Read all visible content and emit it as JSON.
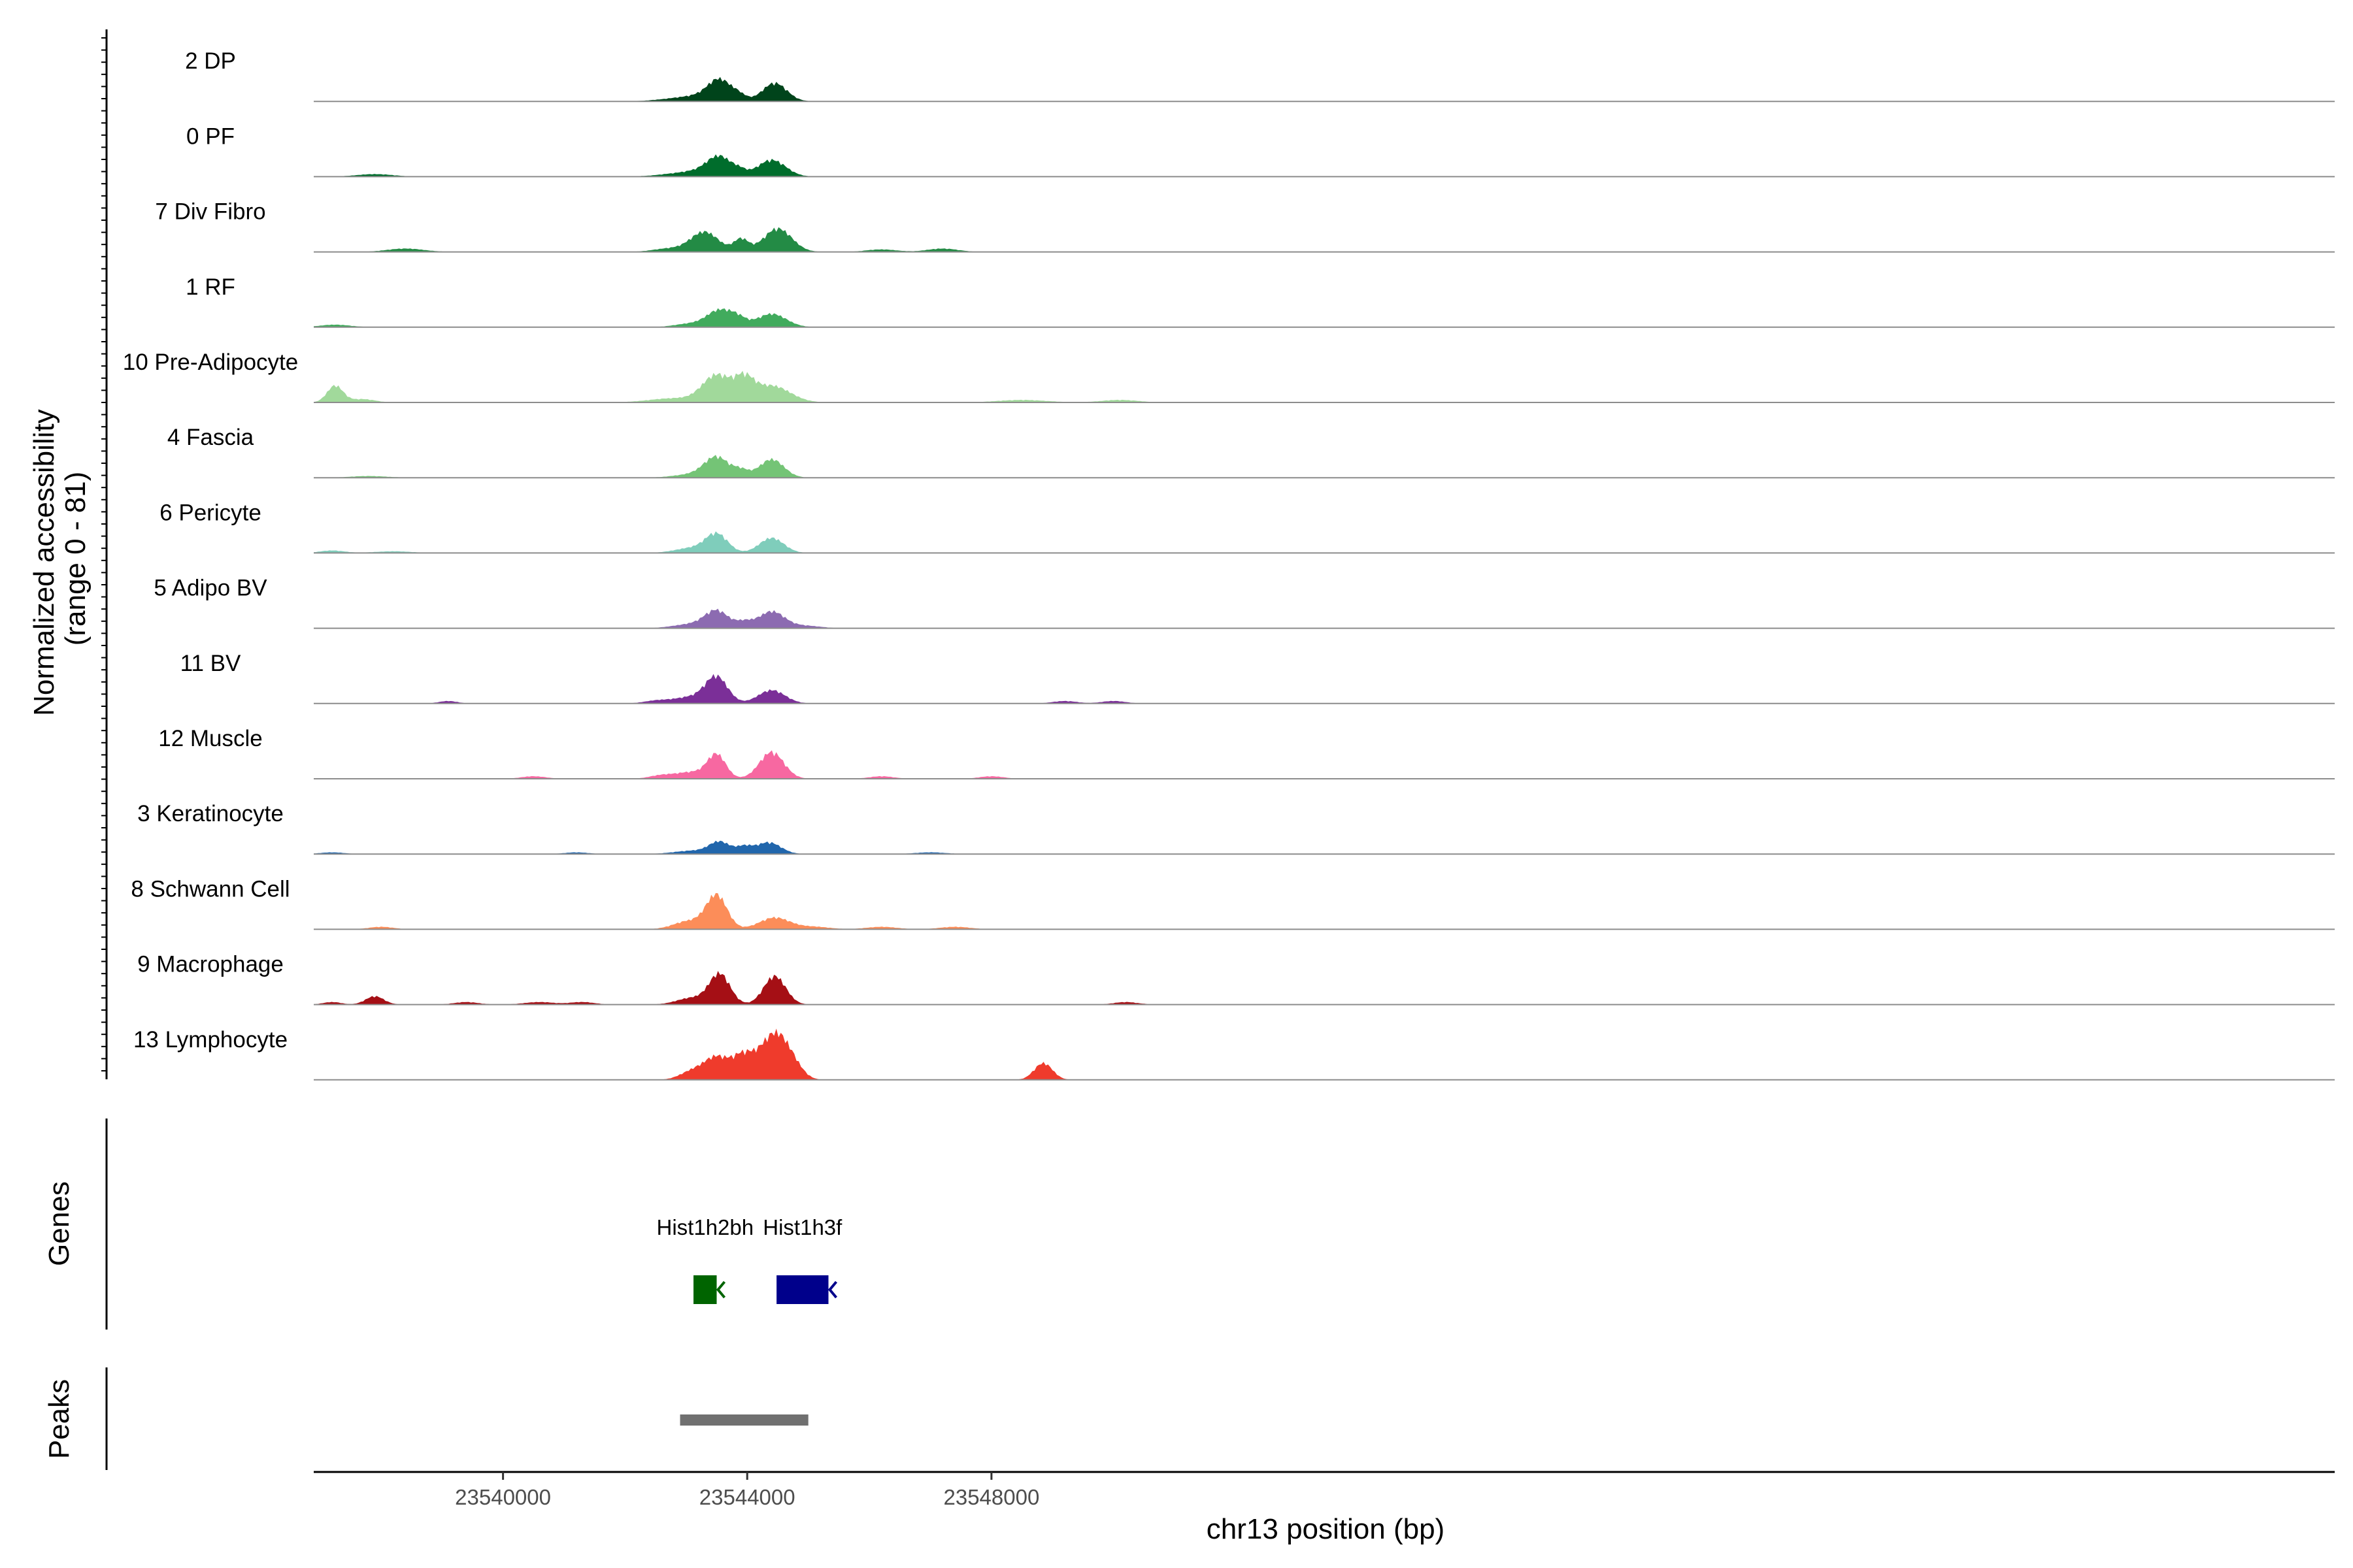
{
  "chart_data": {
    "type": "area",
    "title": "",
    "chromosome": "chr13",
    "xlim": [
      23536900,
      23570000
    ],
    "xlabel": "chr13 position (bp)",
    "x_ticks": [
      23540000,
      23544000,
      23548000
    ],
    "x_tick_labels": [
      "23540000",
      "23544000",
      "23548000"
    ],
    "ylabel_line1": "Normalized accessibility",
    "ylabel_line2": "(range 0 - 81)",
    "ylim": [
      0,
      81
    ],
    "genes_label": "Genes",
    "peaks_label": "Peaks",
    "series": [
      {
        "name": "2 DP",
        "color": "#00441b",
        "peaks": [
          [
            23543550,
            190,
            24
          ],
          [
            23543870,
            120,
            6
          ],
          [
            23544450,
            200,
            22
          ],
          [
            23543200,
            300,
            6
          ],
          [
            23542700,
            300,
            2
          ]
        ]
      },
      {
        "name": "0 PF",
        "color": "#006d2c",
        "peaks": [
          [
            23543550,
            200,
            22
          ],
          [
            23543200,
            300,
            6
          ],
          [
            23543880,
            110,
            5
          ],
          [
            23544400,
            230,
            20
          ],
          [
            23537900,
            300,
            3
          ],
          [
            23542700,
            300,
            2
          ]
        ]
      },
      {
        "name": "7 Div Fibro",
        "color": "#238b45",
        "peaks": [
          [
            23543300,
            230,
            24
          ],
          [
            23543900,
            120,
            15
          ],
          [
            23544500,
            230,
            28
          ],
          [
            23542700,
            250,
            4
          ],
          [
            23538400,
            300,
            4
          ],
          [
            23546200,
            250,
            3
          ],
          [
            23547200,
            250,
            4
          ]
        ]
      },
      {
        "name": "1 RF",
        "color": "#41ab5d",
        "peaks": [
          [
            23543550,
            210,
            20
          ],
          [
            23543850,
            140,
            8
          ],
          [
            23544400,
            240,
            16
          ],
          [
            23537250,
            250,
            3
          ],
          [
            23543050,
            250,
            4
          ]
        ]
      },
      {
        "name": "10 Pre-Adipocyte",
        "color": "#a1d99b",
        "peaks": [
          [
            23537250,
            130,
            20
          ],
          [
            23537700,
            200,
            4
          ],
          [
            23543500,
            230,
            32
          ],
          [
            23543950,
            160,
            24
          ],
          [
            23544400,
            300,
            20
          ],
          [
            23542800,
            400,
            5
          ],
          [
            23548500,
            400,
            3
          ],
          [
            23550100,
            300,
            3
          ]
        ]
      },
      {
        "name": "4 Fascia",
        "color": "#74c476",
        "peaks": [
          [
            23543500,
            200,
            24
          ],
          [
            23543900,
            130,
            8
          ],
          [
            23544400,
            200,
            22
          ],
          [
            23543100,
            300,
            4
          ],
          [
            23537800,
            300,
            2
          ]
        ]
      },
      {
        "name": "6 Pericyte",
        "color": "#7fcdbb",
        "peaks": [
          [
            23543500,
            180,
            22
          ],
          [
            23543100,
            280,
            6
          ],
          [
            23544400,
            200,
            18
          ],
          [
            23537200,
            200,
            3
          ],
          [
            23538200,
            300,
            2
          ]
        ]
      },
      {
        "name": "5 Adipo BV",
        "color": "#8c6bb1",
        "peaks": [
          [
            23543500,
            190,
            20
          ],
          [
            23543950,
            140,
            7
          ],
          [
            23544400,
            210,
            20
          ],
          [
            23543100,
            300,
            5
          ],
          [
            23544950,
            250,
            3
          ]
        ]
      },
      {
        "name": "11 BV",
        "color": "#7b2f98",
        "peaks": [
          [
            23543500,
            180,
            30
          ],
          [
            23544400,
            220,
            16
          ],
          [
            23543100,
            300,
            8
          ],
          [
            23542500,
            200,
            3
          ],
          [
            23539100,
            150,
            3
          ],
          [
            23549200,
            200,
            3
          ],
          [
            23550000,
            200,
            3
          ]
        ]
      },
      {
        "name": "12 Muscle",
        "color": "#f768a1",
        "peaks": [
          [
            23543500,
            150,
            28
          ],
          [
            23544400,
            200,
            32
          ],
          [
            23543100,
            250,
            8
          ],
          [
            23542600,
            200,
            4
          ],
          [
            23540500,
            200,
            3
          ],
          [
            23546200,
            200,
            3
          ],
          [
            23548000,
            200,
            3
          ]
        ]
      },
      {
        "name": "3 Keratinocyte",
        "color": "#2166ac",
        "peaks": [
          [
            23543550,
            170,
            14
          ],
          [
            23543950,
            130,
            8
          ],
          [
            23544350,
            200,
            14
          ],
          [
            23543100,
            300,
            4
          ],
          [
            23537200,
            200,
            2
          ],
          [
            23541200,
            200,
            2
          ],
          [
            23547000,
            250,
            2
          ]
        ]
      },
      {
        "name": "8 Schwann Cell",
        "color": "#fc8d59",
        "peaks": [
          [
            23543500,
            170,
            40
          ],
          [
            23543050,
            250,
            10
          ],
          [
            23544450,
            250,
            14
          ],
          [
            23538000,
            200,
            3
          ],
          [
            23545100,
            250,
            3
          ],
          [
            23546200,
            250,
            3
          ],
          [
            23547400,
            250,
            3
          ]
        ]
      },
      {
        "name": "9 Macrophage",
        "color": "#a50f15",
        "peaks": [
          [
            23543550,
            170,
            36
          ],
          [
            23543100,
            250,
            8
          ],
          [
            23544450,
            180,
            34
          ],
          [
            23537900,
            150,
            10
          ],
          [
            23537200,
            150,
            3
          ],
          [
            23539400,
            200,
            3
          ],
          [
            23540600,
            250,
            3
          ],
          [
            23541300,
            200,
            3
          ],
          [
            23550200,
            200,
            3
          ]
        ]
      },
      {
        "name": "13 Lymphocyte",
        "color": "#ef3b2c",
        "peaks": [
          [
            23543100,
            200,
            10
          ],
          [
            23543500,
            200,
            26
          ],
          [
            23544500,
            220,
            50
          ],
          [
            23544100,
            250,
            20
          ],
          [
            23543900,
            150,
            14
          ],
          [
            23544800,
            150,
            6
          ],
          [
            23548850,
            150,
            20
          ]
        ]
      }
    ],
    "genes": [
      {
        "name": "Hist1h2bh",
        "start": 23543120,
        "end": 23543500,
        "strand": "-",
        "color": "#006400"
      },
      {
        "name": "Hist1h3f",
        "start": 23544480,
        "end": 23545330,
        "strand": "-",
        "color": "#00008b"
      }
    ],
    "peak_regions": [
      {
        "start": 23542900,
        "end": 23545000,
        "color": "#707070"
      }
    ]
  }
}
